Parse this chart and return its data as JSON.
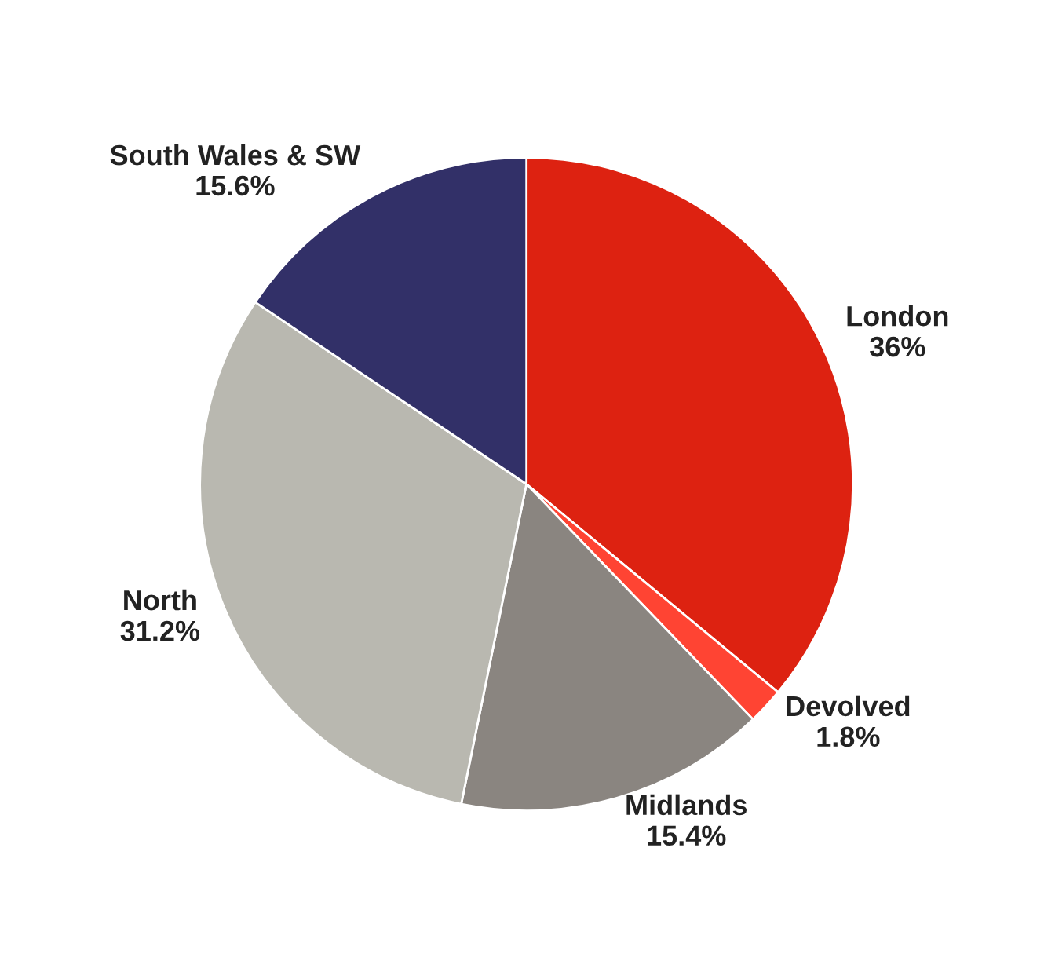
{
  "chart_data": {
    "type": "pie",
    "categories": [
      "London",
      "Devolved",
      "Midlands",
      "North",
      "South Wales & SW"
    ],
    "values": [
      36,
      1.8,
      15.4,
      31.2,
      15.6
    ],
    "value_labels": [
      "36%",
      "1.8%",
      "15.4%",
      "31.2%",
      "15.6%"
    ],
    "colors": [
      "#dd2211",
      "#ff4433",
      "#8a8580",
      "#b9b8b0",
      "#323068"
    ],
    "legend": false
  }
}
